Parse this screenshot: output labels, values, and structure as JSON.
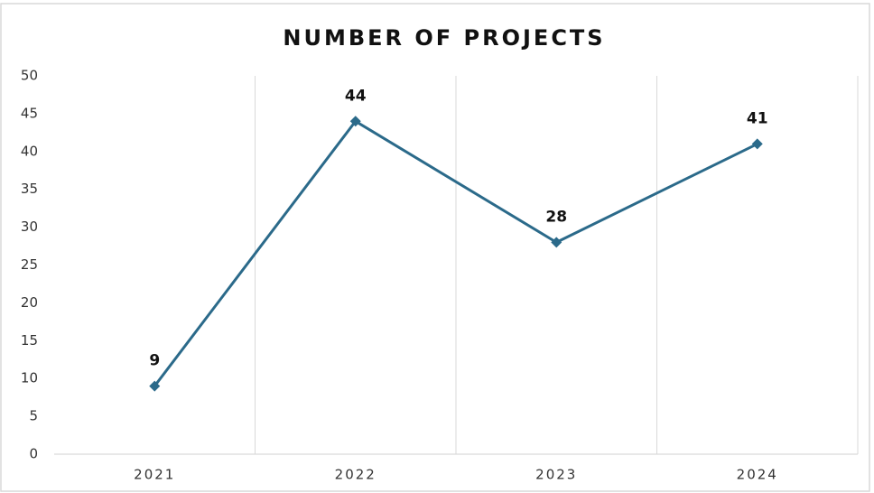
{
  "chart_data": {
    "type": "line",
    "title": "NUMBER OF PROJECTS",
    "categories": [
      "2021",
      "2022",
      "2023",
      "2024"
    ],
    "values": [
      9,
      44,
      28,
      41
    ],
    "color": "#2b6a8a",
    "ylim": [
      0,
      50
    ],
    "yticks": [
      0,
      5,
      10,
      15,
      20,
      25,
      30,
      35,
      40,
      45,
      50
    ],
    "grid": "x"
  }
}
